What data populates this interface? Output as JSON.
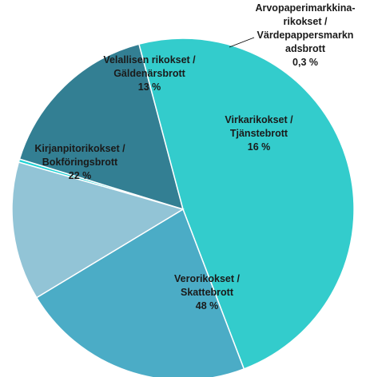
{
  "chart_data": {
    "type": "pie",
    "title": "",
    "slices": [
      {
        "name": "Arvopaperimarkkina-rikokset / Värdepappersmarknadsbrott",
        "value": 0.3,
        "value_label": "0,3 %",
        "color": "#22d3d6",
        "label_lines": [
          "Arvopaperimarkkina-",
          "rikokset /",
          "Värdepappersmarkn",
          "adsbrott",
          "0,3 %"
        ]
      },
      {
        "name": "Virkarikokset / Tjänstebrott",
        "value": 16,
        "value_label": "16 %",
        "color": "#337f93",
        "label_lines": [
          "Virkarikokset /",
          "Tjänstebrott",
          "16 %"
        ]
      },
      {
        "name": "Verorikokset / Skattebrott",
        "value": 48,
        "value_label": "48 %",
        "color": "#33cccc",
        "label_lines": [
          "Verorikokset /",
          "Skattebrott",
          "48 %"
        ]
      },
      {
        "name": "Kirjanpitorikokset / Bokföringsbrott",
        "value": 22,
        "value_label": "22 %",
        "color": "#4bacc6",
        "label_lines": [
          "Kirjanpitorikokset /",
          "Bokföringsbrott",
          "22 %"
        ]
      },
      {
        "name": "Velallisen rikokset / Gäldenärsbrott",
        "value": 13,
        "value_label": "13 %",
        "color": "#92c4d6",
        "label_lines": [
          "Velallisen rikokset /",
          "Gäldenärsbrott",
          "13 %"
        ]
      }
    ]
  }
}
